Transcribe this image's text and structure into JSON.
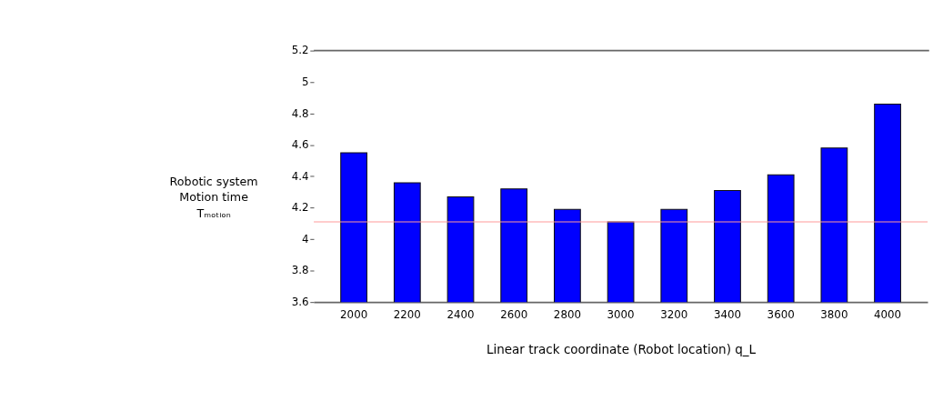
{
  "chart_data": {
    "type": "bar",
    "categories": [
      "2000",
      "2200",
      "2400",
      "2600",
      "2800",
      "3000",
      "3200",
      "3400",
      "3600",
      "3800",
      "4000"
    ],
    "values": [
      4.55,
      4.36,
      4.27,
      4.32,
      4.19,
      4.11,
      4.19,
      4.31,
      4.41,
      4.58,
      4.86
    ],
    "color": "#0000ff",
    "ylim": [
      3.6,
      5.2
    ],
    "yticks": [
      3.6,
      3.8,
      4,
      4.2,
      4.4,
      4.6,
      4.8,
      5,
      5.2
    ],
    "ylabel": "Robotic system\nMotion time\nTₘₒₜᵢₒₙ",
    "xlabel": "Linear track coordinate (Robot location) q_L",
    "ref_lines": [
      {
        "axis": "y",
        "value": 4.11,
        "color": "#ff9999"
      }
    ],
    "grid": false
  }
}
